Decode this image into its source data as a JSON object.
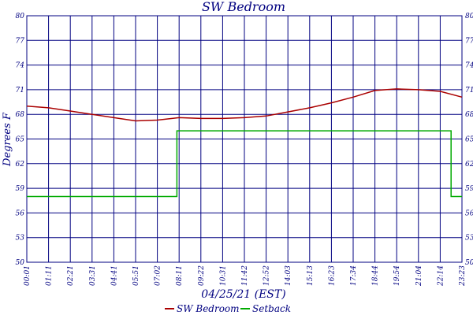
{
  "chart_data": {
    "type": "line",
    "title": "SW Bedroom",
    "xlabel": "04/25/21 (EST)",
    "ylabel": "Degrees F",
    "ylim": [
      50,
      80
    ],
    "yticks": [
      "50",
      "53",
      "56",
      "59",
      "62",
      "65",
      "68",
      "71",
      "74",
      "77",
      "80"
    ],
    "x_tick_labels": [
      "00:01",
      "01:11",
      "02:21",
      "03:31",
      "04:41",
      "05:51",
      "07:02",
      "08:11",
      "09:22",
      "10:31",
      "11:42",
      "12:52",
      "14:03",
      "15:13",
      "16:23",
      "17:34",
      "18:44",
      "19:54",
      "21:04",
      "22:14",
      "23:23"
    ],
    "grid": true,
    "legend_position": "bottom",
    "series": [
      {
        "name": "SW Bedroom",
        "color": "#aa0000",
        "x": [
          0,
          1,
          2,
          3,
          4,
          5,
          6,
          7,
          8,
          9,
          10,
          11,
          12,
          13,
          14,
          15,
          16,
          17,
          18,
          19,
          20
        ],
        "values": [
          69.0,
          68.8,
          68.4,
          68.0,
          67.6,
          67.2,
          67.3,
          67.6,
          67.5,
          67.5,
          67.6,
          67.8,
          68.3,
          68.8,
          69.4,
          70.1,
          70.9,
          71.1,
          71.0,
          70.8,
          70.1
        ]
      },
      {
        "name": "Setback",
        "color": "#00aa00",
        "x": [
          0,
          6.9,
          6.9,
          19.5,
          19.5,
          20
        ],
        "values": [
          58.0,
          58.0,
          66.0,
          66.0,
          58.0,
          58.0
        ]
      }
    ]
  }
}
